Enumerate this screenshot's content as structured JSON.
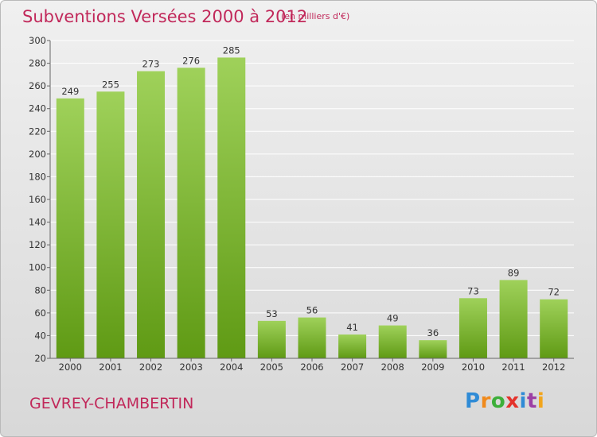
{
  "header": {
    "title": "Subventions Versées 2000 à 2012",
    "subtitle": "(en milliers d'€)"
  },
  "footer": {
    "commune": "GEVREY-CHAMBERTIN",
    "logo_letters": [
      "P",
      "r",
      "o",
      "x",
      "i",
      "t",
      "i"
    ],
    "logo_colors": [
      "#2f8bd6",
      "#f08a1c",
      "#3daf3a",
      "#e4322b",
      "#2f8bd6",
      "#9c3fa4",
      "#f2a51c"
    ]
  },
  "colors": {
    "bar_top": "#9fd15a",
    "bar_bottom": "#5f9a14",
    "grid": "#ffffff",
    "title": "#c1285a"
  },
  "chart_data": {
    "type": "bar",
    "title": "Subventions Versées 2000 à 2012",
    "subtitle": "(en milliers d'€)",
    "categories": [
      "2000",
      "2001",
      "2002",
      "2003",
      "2004",
      "2005",
      "2006",
      "2007",
      "2008",
      "2009",
      "2010",
      "2011",
      "2012"
    ],
    "values": [
      249,
      255,
      273,
      276,
      285,
      53,
      56,
      41,
      49,
      36,
      73,
      89,
      72
    ],
    "ylim": [
      20,
      300
    ],
    "yticks": [
      20,
      40,
      60,
      80,
      100,
      120,
      140,
      160,
      180,
      200,
      220,
      240,
      260,
      280,
      300
    ],
    "grid": true,
    "data_labels": true
  }
}
